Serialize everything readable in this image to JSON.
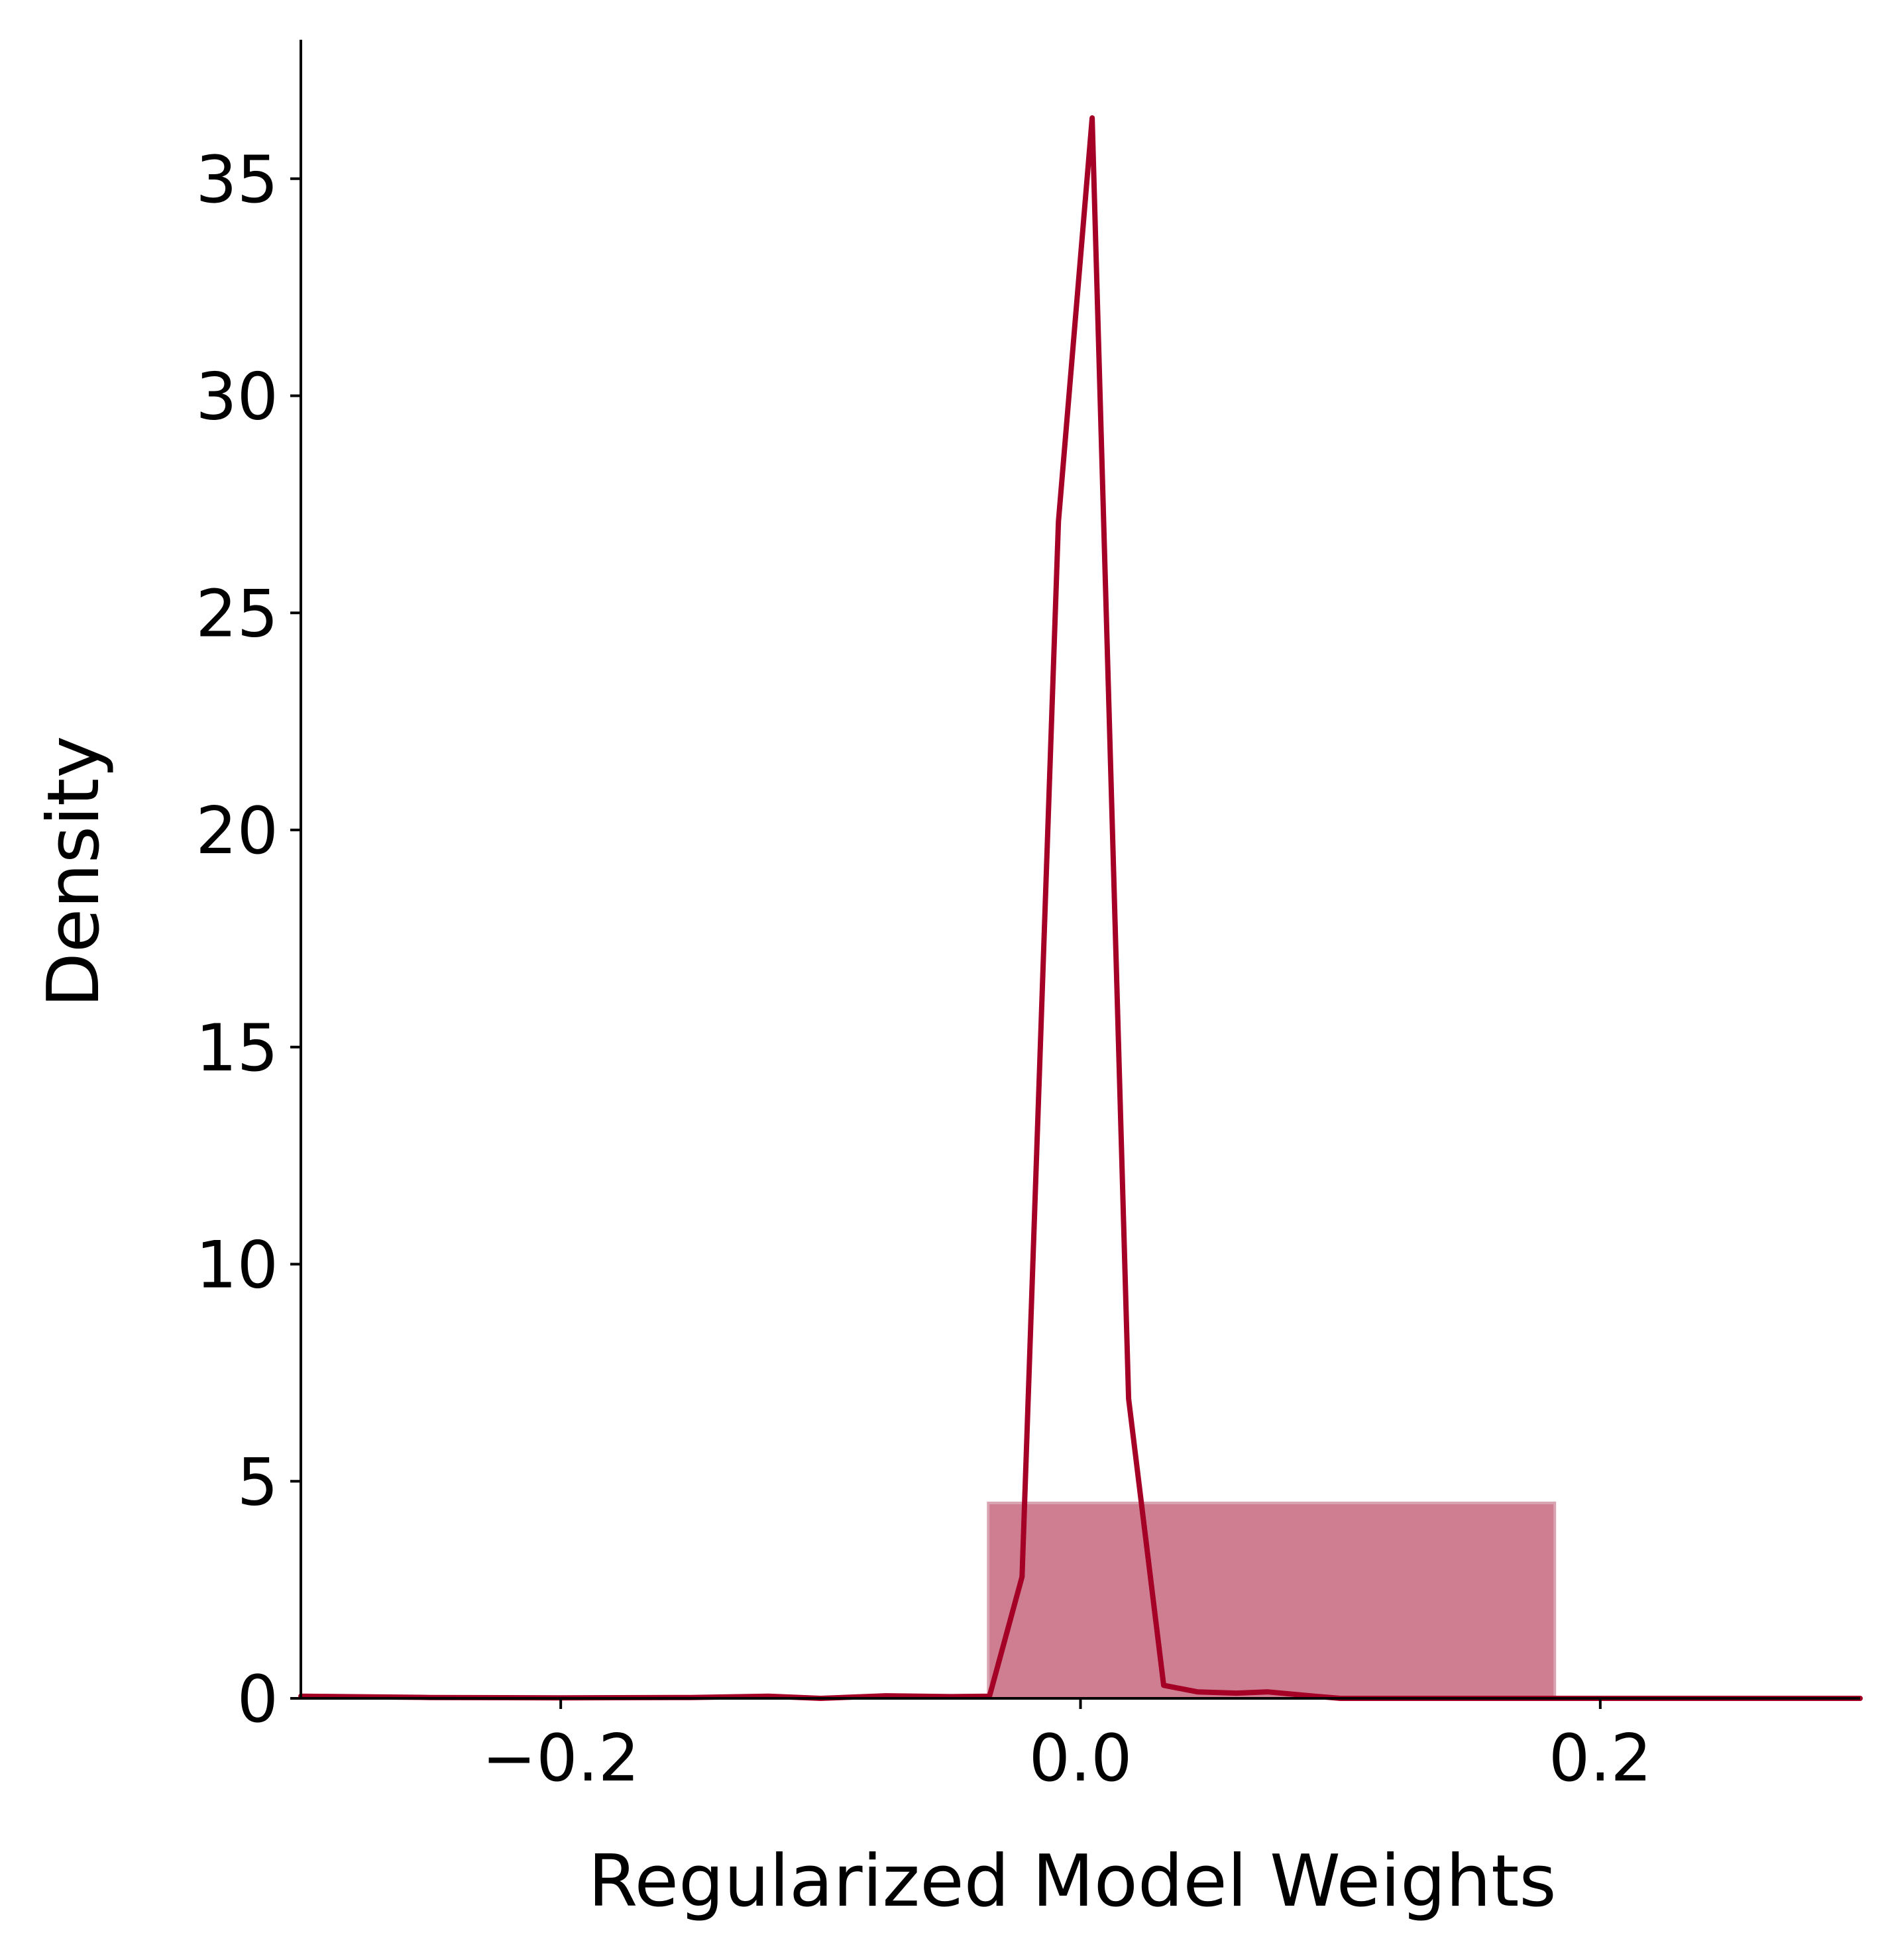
{
  "chart_data": {
    "type": "histogram+kde",
    "title": "",
    "xlabel": "Regularized Model Weights",
    "ylabel": "Density",
    "xlim": [
      -0.3,
      0.3
    ],
    "ylim": [
      0,
      38.2
    ],
    "grid": false,
    "legend": "none",
    "x_ticks": [
      {
        "value": -0.2,
        "label": "−0.2"
      },
      {
        "value": 0.0,
        "label": "0.0"
      },
      {
        "value": 0.2,
        "label": "0.2"
      }
    ],
    "y_ticks": [
      {
        "value": 0,
        "label": "0"
      },
      {
        "value": 5,
        "label": "5"
      },
      {
        "value": 10,
        "label": "10"
      },
      {
        "value": 15,
        "label": "15"
      },
      {
        "value": 20,
        "label": "20"
      },
      {
        "value": 25,
        "label": "25"
      },
      {
        "value": 30,
        "label": "30"
      },
      {
        "value": 35,
        "label": "35"
      }
    ],
    "colors": {
      "bar_fill": "#c15a73",
      "bar_edge": "#d9a4b1",
      "kde_line": "#a50026",
      "axis": "#000000"
    },
    "histogram": [
      {
        "x_start": -0.0355,
        "x_end": 0.1825,
        "density": 4.5
      }
    ],
    "kde": {
      "x": [
        -0.3,
        -0.25,
        -0.2,
        -0.15,
        -0.12,
        -0.1,
        -0.075,
        -0.05,
        -0.035,
        -0.0225,
        -0.0085,
        0.0045,
        0.0185,
        0.032,
        0.045,
        0.06,
        0.072,
        0.09,
        0.1,
        0.15,
        0.2,
        0.25,
        0.3
      ],
      "y": [
        0.05,
        0.02,
        0.01,
        0.02,
        0.05,
        0.0,
        0.06,
        0.04,
        0.05,
        2.8,
        27.1,
        36.4,
        6.9,
        0.3,
        0.15,
        0.12,
        0.15,
        0.05,
        0.0,
        0.0,
        0.0,
        0.0,
        0.0
      ]
    }
  }
}
